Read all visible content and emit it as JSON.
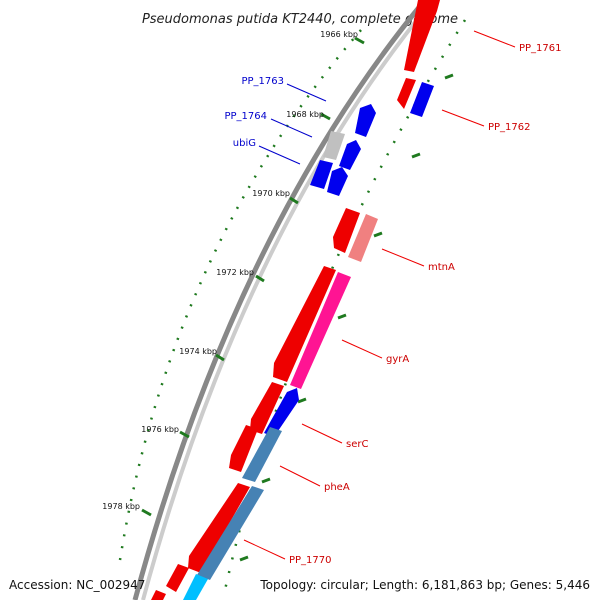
{
  "title": "Pseudomonas putida KT2440, complete genome",
  "footer": {
    "accession": "Accession: NC_002947",
    "summary": "Topology: circular; Length: 6,181,863 bp; Genes: 5,446"
  },
  "colors": {
    "backbone_outer": "#888888",
    "backbone_inner": "#cccccc",
    "tick": "#1f7a1f",
    "forward_label": "#cc0000",
    "reverse_label": "#0000cc",
    "red": "#ee0000",
    "blue": "#0000ee",
    "pink": "#ff1493",
    "salmon": "#f08080",
    "grey": "#c0c0c0",
    "steel": "#4682b4",
    "cyan": "#00bfff"
  },
  "ticks": [
    {
      "label": "1966 kbp"
    },
    {
      "label": "1968 kbp"
    },
    {
      "label": "1970 kbp"
    },
    {
      "label": "1972 kbp"
    },
    {
      "label": "1974 kbp"
    },
    {
      "label": "1976 kbp"
    },
    {
      "label": "1978 kbp"
    }
  ],
  "gene_labels": [
    {
      "text": "PP_1761",
      "strand": "forward"
    },
    {
      "text": "PP_1762",
      "strand": "forward"
    },
    {
      "text": "PP_1763",
      "strand": "reverse"
    },
    {
      "text": "PP_1764",
      "strand": "reverse"
    },
    {
      "text": "ubiG",
      "strand": "reverse"
    },
    {
      "text": "mtnA",
      "strand": "forward"
    },
    {
      "text": "gyrA",
      "strand": "forward"
    },
    {
      "text": "serC",
      "strand": "forward"
    },
    {
      "text": "pheA",
      "strand": "forward"
    },
    {
      "text": "PP_1770",
      "strand": "forward"
    }
  ]
}
